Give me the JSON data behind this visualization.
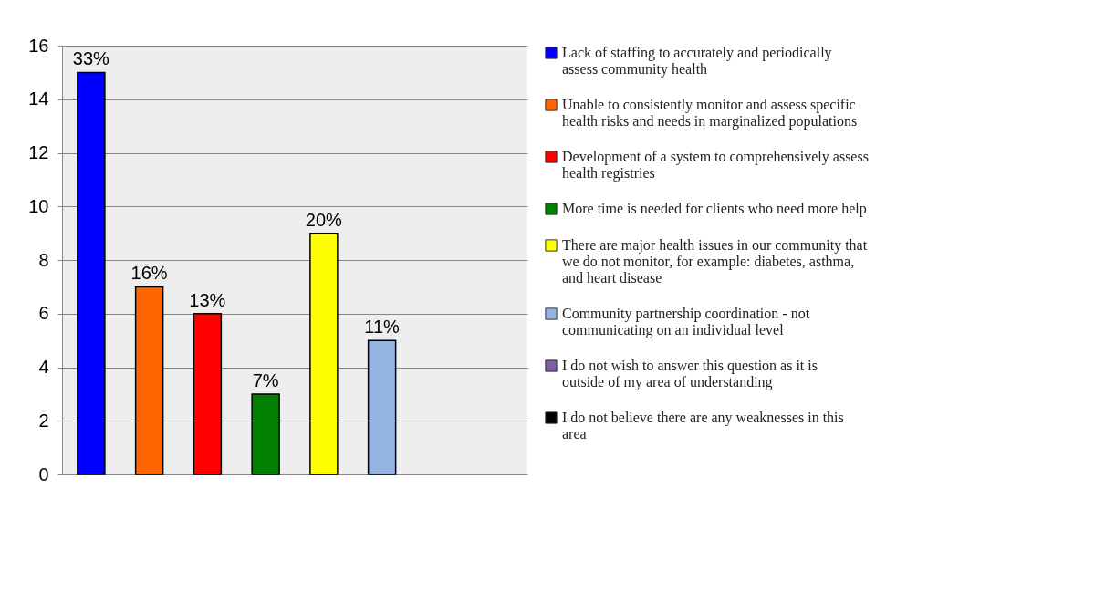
{
  "chart_data": {
    "type": "bar",
    "categories": [
      null,
      null,
      null,
      null,
      null,
      null,
      null,
      null
    ],
    "series": [
      {
        "name": "Lack of staffing to accurately and periodically assess community health",
        "color": "#0000ff",
        "values": [
          15,
          null,
          null,
          null,
          null,
          null,
          null,
          null
        ]
      },
      {
        "name": "Unable to consistently monitor and assess specific health risks and needs in marginalized populations",
        "color": "#ff6600",
        "values": [
          null,
          7,
          null,
          null,
          null,
          null,
          null,
          null
        ]
      },
      {
        "name": "Development of a system to comprehensively assess health registries",
        "color": "#ff0000",
        "values": [
          null,
          null,
          6,
          null,
          null,
          null,
          null,
          null
        ]
      },
      {
        "name": "More time is needed for clients who need more help",
        "color": "#007f00",
        "values": [
          null,
          null,
          null,
          3,
          null,
          null,
          null,
          null
        ]
      },
      {
        "name": "There are major health issues in our community that we do not monitor, for example: diabetes, asthma, and heart disease",
        "color": "#ffff00",
        "values": [
          null,
          null,
          null,
          null,
          9,
          null,
          null,
          null
        ]
      },
      {
        "name": "Community partnership coordination - not communicating on an individual level",
        "color": "#95b3e0",
        "values": [
          null,
          null,
          null,
          null,
          null,
          5,
          null,
          null
        ]
      },
      {
        "name": "I do not wish to answer this question as it is outside of my area of understanding",
        "color": "#7f60a0",
        "values": [
          null,
          null,
          null,
          null,
          null,
          null,
          null,
          null
        ]
      },
      {
        "name": "I do not believe there are any weaknesses in this area",
        "color": "#000000",
        "values": [
          null,
          null,
          null,
          null,
          null,
          null,
          null,
          null
        ]
      }
    ],
    "annotations": [
      {
        "text": "33%",
        "y": 15
      },
      {
        "text": "16%",
        "y": 7
      },
      {
        "text": "13%",
        "y": 6
      },
      {
        "text": "7%",
        "y": 3
      },
      {
        "text": "20%",
        "y": 9
      },
      {
        "text": "11%",
        "y": 5
      }
    ],
    "ylim": [
      0,
      16
    ],
    "yticks": [
      0,
      2,
      4,
      6,
      8,
      10,
      12,
      14,
      16
    ],
    "grid": "y",
    "legend": "right",
    "tick_labels": "y"
  }
}
